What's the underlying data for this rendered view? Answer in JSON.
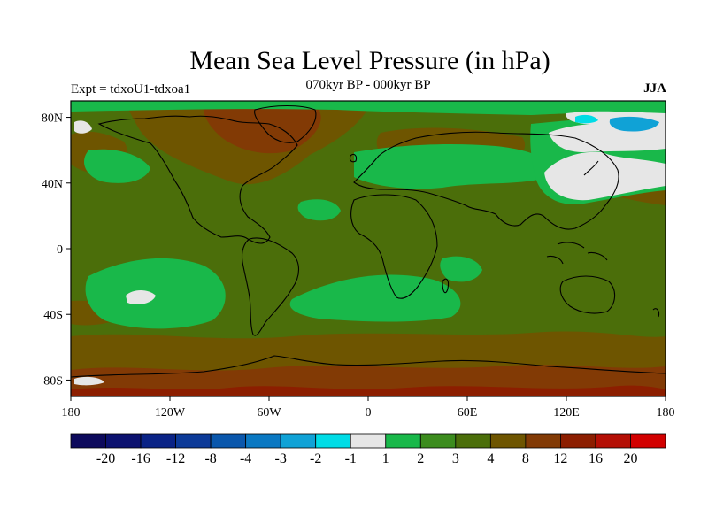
{
  "title": "Mean Sea Level Pressure (in hPa)",
  "subtitle": "070kyr BP - 000kyr BP",
  "experiment": "Expt = tdxoU1-tdxoa1",
  "season": "JJA",
  "map": {
    "projection": "equirectangular",
    "lon_range": [
      -180,
      180
    ],
    "lat_range": [
      -90,
      90
    ],
    "lat_ticks": [
      "80N",
      "40N",
      "0",
      "40S",
      "80S"
    ],
    "lon_ticks": [
      "180",
      "120W",
      "60W",
      "0",
      "60E",
      "120E",
      "180"
    ]
  },
  "colorbar": {
    "labels": [
      "-20",
      "-16",
      "-12",
      "-8",
      "-4",
      "-3",
      "-2",
      "-1",
      "1",
      "2",
      "3",
      "4",
      "8",
      "12",
      "16",
      "20"
    ],
    "colors": [
      "#0d0a5c",
      "#0c1270",
      "#0a2386",
      "#0c3a98",
      "#0a57ac",
      "#0a78c2",
      "#10a2d6",
      "#00dce6",
      "#e6e6e6",
      "#19b84a",
      "#3c8c1e",
      "#4b6e0a",
      "#6e5500",
      "#823a05",
      "#8c1e00",
      "#b40f05",
      "#d20000"
    ]
  },
  "colors": {
    "ocean_base": "#4b6e0a",
    "land_base": "#3c8c1e",
    "high_anomaly": "#6e5500",
    "stronger_high": "#823a05",
    "low_anomaly": "#19b84a",
    "near_zero": "#e6e6e6",
    "negative": "#10a2d6"
  }
}
